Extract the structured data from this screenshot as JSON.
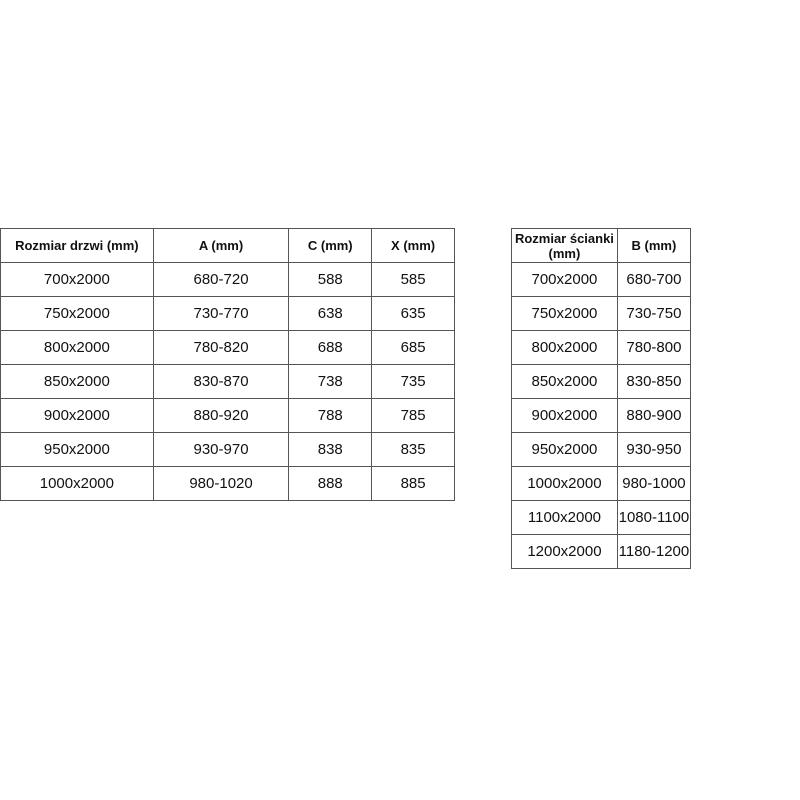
{
  "door_table": {
    "headers": [
      "Rozmiar drzwi (mm)",
      "A (mm)",
      "C (mm)",
      "X (mm)"
    ],
    "rows": [
      [
        "700x2000",
        "680-720",
        "588",
        "585"
      ],
      [
        "750x2000",
        "730-770",
        "638",
        "635"
      ],
      [
        "800x2000",
        "780-820",
        "688",
        "685"
      ],
      [
        "850x2000",
        "830-870",
        "738",
        "735"
      ],
      [
        "900x2000",
        "880-920",
        "788",
        "785"
      ],
      [
        "950x2000",
        "930-970",
        "838",
        "835"
      ],
      [
        "1000x2000",
        "980-1020",
        "888",
        "885"
      ]
    ]
  },
  "wall_table": {
    "headers": [
      "Rozmiar ścianki (mm)",
      "B (mm)"
    ],
    "rows": [
      [
        "700x2000",
        "680-700"
      ],
      [
        "750x2000",
        "730-750"
      ],
      [
        "800x2000",
        "780-800"
      ],
      [
        "850x2000",
        "830-850"
      ],
      [
        "900x2000",
        "880-900"
      ],
      [
        "950x2000",
        "930-950"
      ],
      [
        "1000x2000",
        "980-1000"
      ],
      [
        "1100x2000",
        "1080-1100"
      ],
      [
        "1200x2000",
        "1180-1200"
      ]
    ]
  }
}
